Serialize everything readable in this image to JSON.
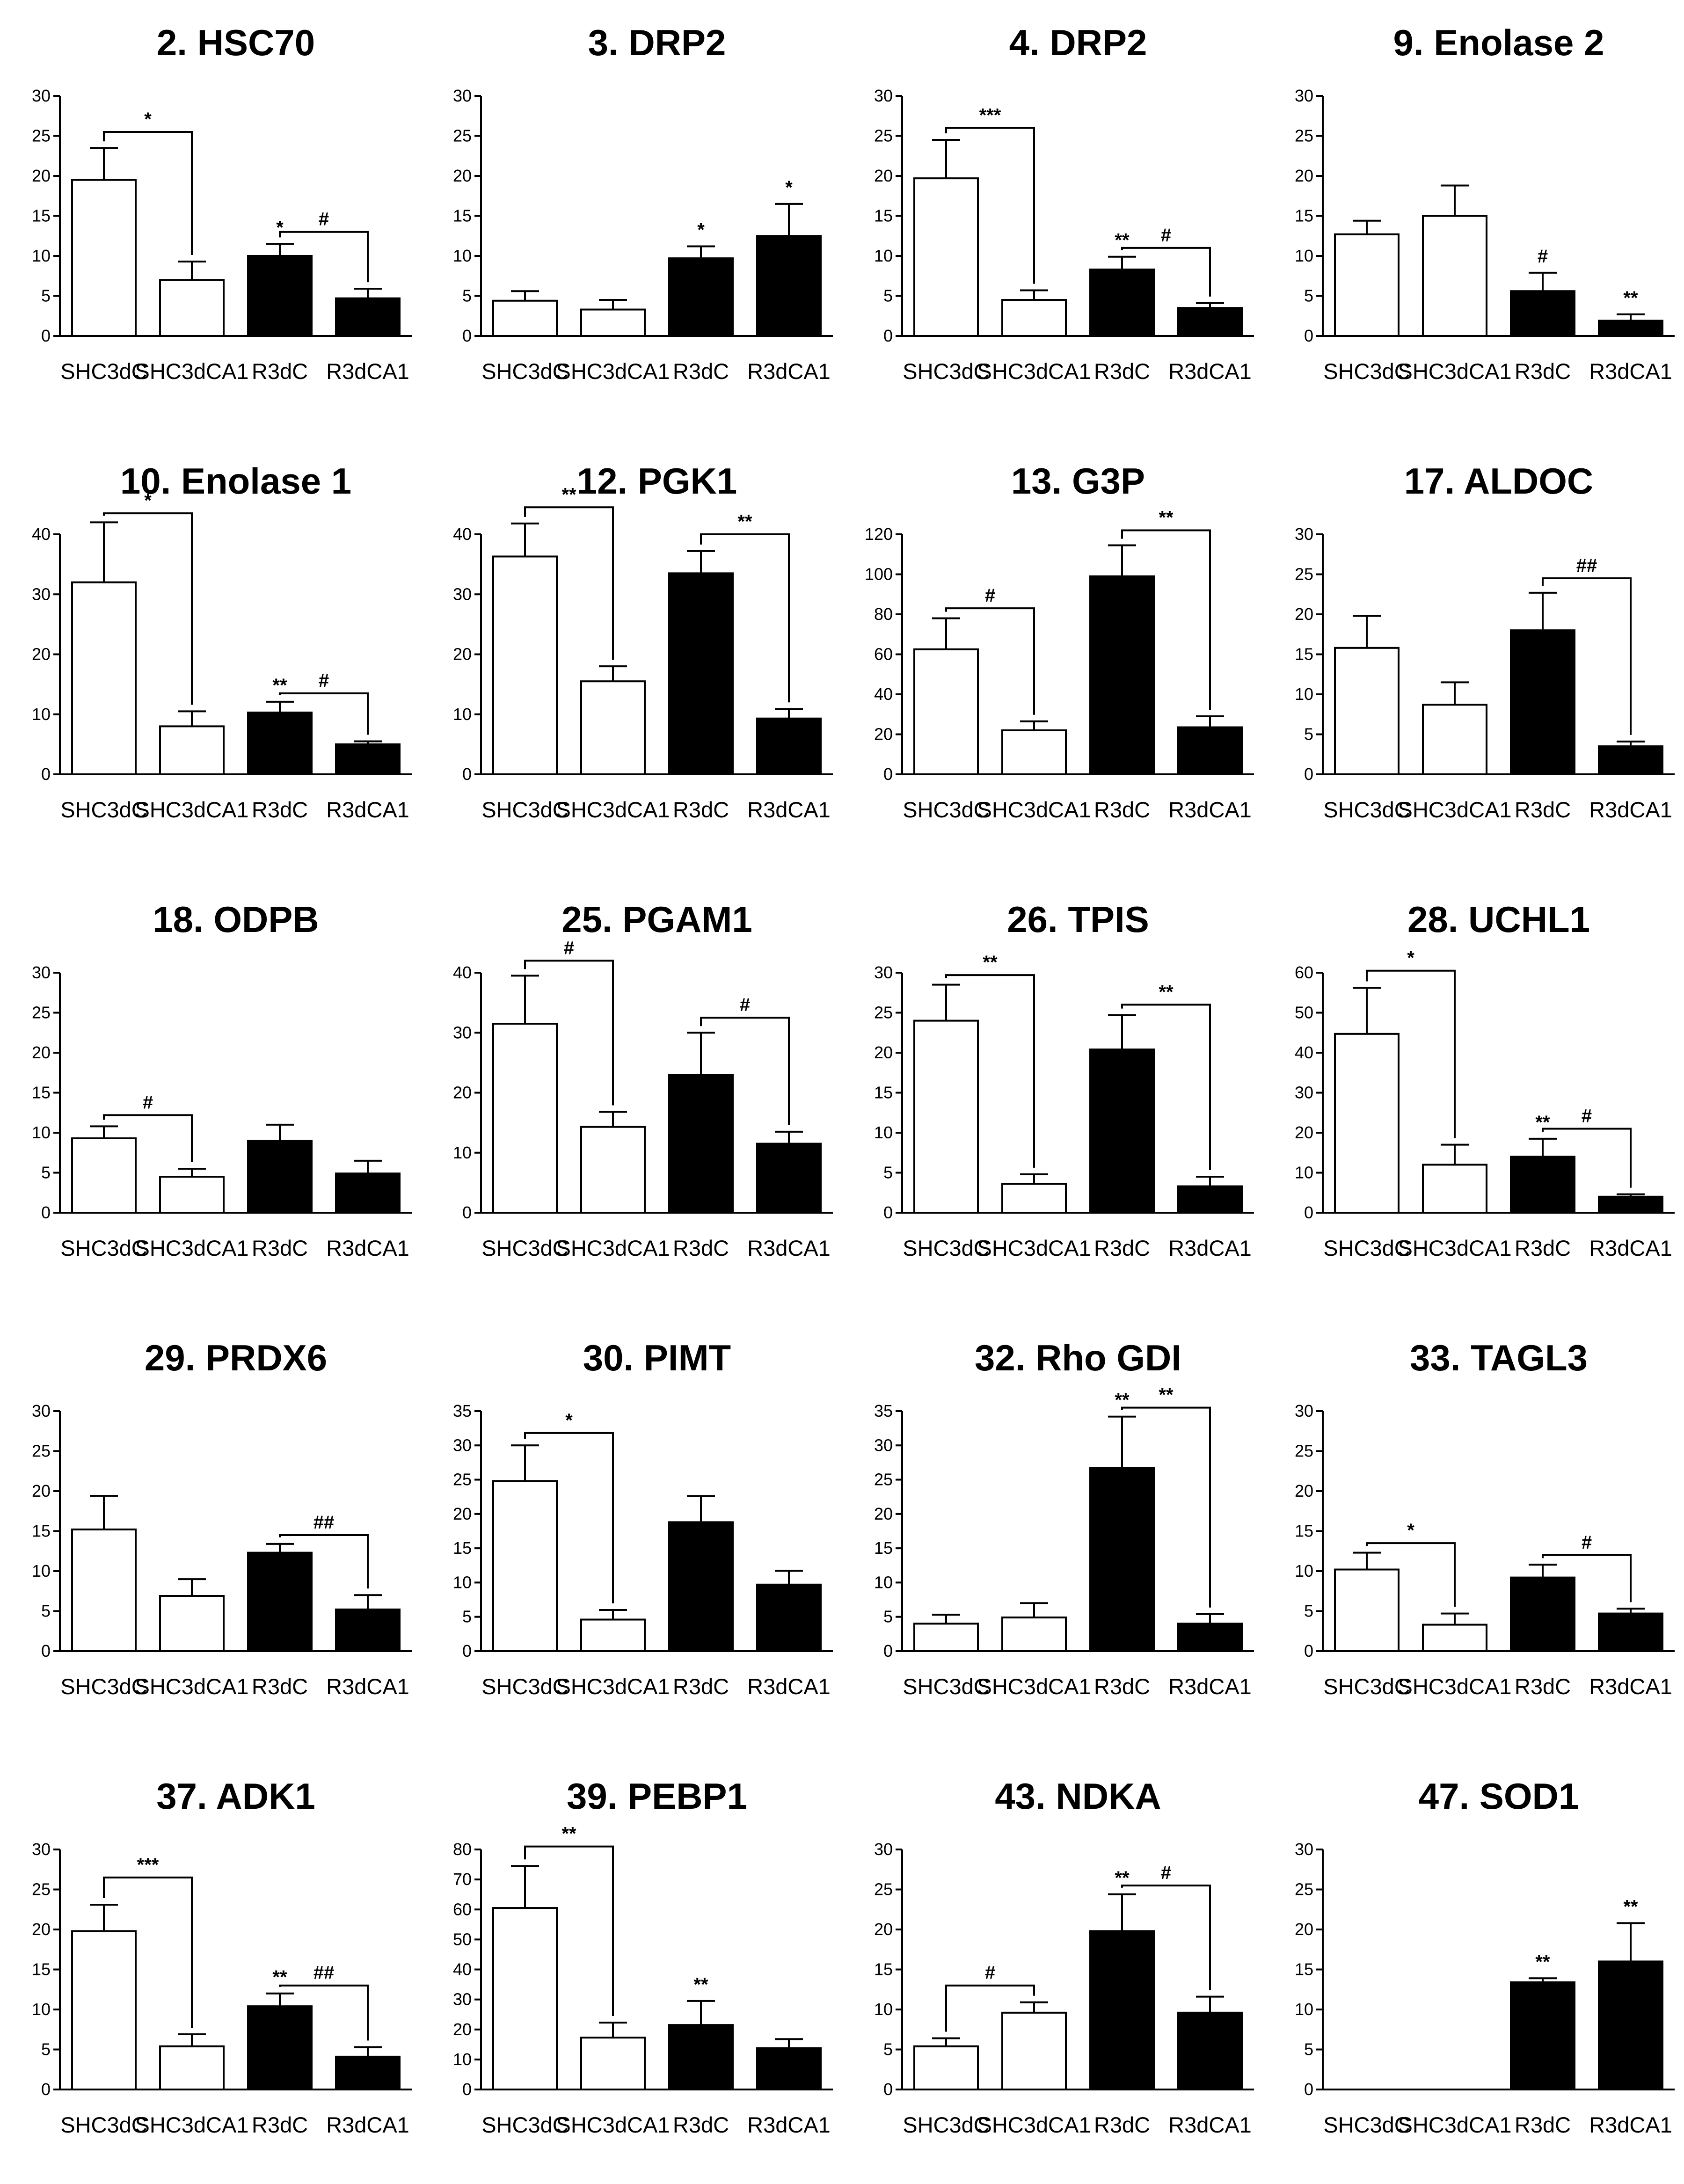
{
  "chart_data": [
    {
      "type": "bar",
      "title": "2. HSC70",
      "categories": [
        "SHC3dC",
        "SHC3dCA1",
        "R3dC",
        "R3dCA1"
      ],
      "values": [
        19.5,
        7,
        10,
        4.7
      ],
      "errors": [
        4,
        2.3,
        1.5,
        1.2
      ],
      "ylim": [
        0,
        30
      ],
      "yticks": [
        0,
        5,
        10,
        15,
        20,
        25,
        30
      ],
      "brackets": [
        {
          "from": 0,
          "to": 1,
          "y": 25.5,
          "label": "*"
        },
        {
          "from": 2,
          "to": 3,
          "y": 13,
          "label": "#"
        }
      ],
      "labels": [
        {
          "bar": 2,
          "text": "*"
        }
      ]
    },
    {
      "type": "bar",
      "title": "3. DRP2",
      "categories": [
        "SHC3dC",
        "SHC3dCA1",
        "R3dC",
        "R3dCA1"
      ],
      "values": [
        4.4,
        3.3,
        9.7,
        12.5
      ],
      "errors": [
        1.2,
        1.2,
        1.5,
        4
      ],
      "ylim": [
        0,
        30
      ],
      "yticks": [
        0,
        5,
        10,
        15,
        20,
        25,
        30
      ],
      "brackets": [],
      "labels": [
        {
          "bar": 2,
          "text": "*"
        },
        {
          "bar": 3,
          "text": "*"
        }
      ]
    },
    {
      "type": "bar",
      "title": "4. DRP2",
      "categories": [
        "SHC3dC",
        "SHC3dCA1",
        "R3dC",
        "R3dCA1"
      ],
      "values": [
        19.7,
        4.5,
        8.3,
        3.5
      ],
      "errors": [
        4.8,
        1.2,
        1.6,
        0.6
      ],
      "ylim": [
        0,
        30
      ],
      "yticks": [
        0,
        5,
        10,
        15,
        20,
        25,
        30
      ],
      "brackets": [
        {
          "from": 0,
          "to": 1,
          "y": 26,
          "label": "***"
        },
        {
          "from": 2,
          "to": 3,
          "y": 11,
          "label": "#"
        }
      ],
      "labels": [
        {
          "bar": 2,
          "text": "**"
        }
      ]
    },
    {
      "type": "bar",
      "title": "9. Enolase 2",
      "categories": [
        "SHC3dC",
        "SHC3dCA1",
        "R3dC",
        "R3dCA1"
      ],
      "values": [
        12.7,
        15,
        5.6,
        1.9
      ],
      "errors": [
        1.7,
        3.8,
        2.3,
        0.8
      ],
      "ylim": [
        0,
        30
      ],
      "yticks": [
        0,
        5,
        10,
        15,
        20,
        25,
        30
      ],
      "brackets": [],
      "labels": [
        {
          "bar": 2,
          "text": "#"
        },
        {
          "bar": 3,
          "text": "**"
        }
      ]
    },
    {
      "type": "bar",
      "title": "10. Enolase 1",
      "categories": [
        "SHC3dC",
        "SHC3dCA1",
        "R3dC",
        "R3dCA1"
      ],
      "values": [
        32,
        8,
        10.3,
        5
      ],
      "errors": [
        10,
        2.5,
        1.8,
        0.5
      ],
      "ylim": [
        0,
        40
      ],
      "yticks": [
        0,
        10,
        20,
        30,
        40
      ],
      "brackets": [
        {
          "from": 0,
          "to": 1,
          "y": 43.5,
          "label": "*"
        },
        {
          "from": 2,
          "to": 3,
          "y": 13.5,
          "label": "#"
        }
      ],
      "labels": [
        {
          "bar": 2,
          "text": "**"
        }
      ]
    },
    {
      "type": "bar",
      "title": "12. PGK1",
      "categories": [
        "SHC3dC",
        "SHC3dCA1",
        "R3dC",
        "R3dCA1"
      ],
      "values": [
        36.3,
        15.5,
        33.5,
        9.3
      ],
      "errors": [
        5.5,
        2.5,
        3.7,
        1.6
      ],
      "ylim": [
        0,
        40
      ],
      "yticks": [
        0,
        10,
        20,
        30,
        40
      ],
      "brackets": [
        {
          "from": 0,
          "to": 1,
          "y": 44.5,
          "label": "**"
        },
        {
          "from": 2,
          "to": 3,
          "y": 40,
          "label": "**"
        }
      ],
      "labels": []
    },
    {
      "type": "bar",
      "title": "13. G3P",
      "categories": [
        "SHC3dC",
        "SHC3dCA1",
        "R3dC",
        "R3dCA1"
      ],
      "values": [
        62.5,
        22,
        99,
        23.5
      ],
      "errors": [
        15.5,
        4.5,
        15.5,
        5.5
      ],
      "ylim": [
        0,
        120
      ],
      "yticks": [
        0,
        20,
        40,
        60,
        80,
        100,
        120
      ],
      "brackets": [
        {
          "from": 0,
          "to": 1,
          "y": 83,
          "label": "#"
        },
        {
          "from": 2,
          "to": 3,
          "y": 122,
          "label": "**"
        }
      ],
      "labels": []
    },
    {
      "type": "bar",
      "title": "17. ALDOC",
      "categories": [
        "SHC3dC",
        "SHC3dCA1",
        "R3dC",
        "R3dCA1"
      ],
      "values": [
        15.8,
        8.7,
        18,
        3.5
      ],
      "errors": [
        4,
        2.8,
        4.7,
        0.6
      ],
      "ylim": [
        0,
        30
      ],
      "yticks": [
        0,
        5,
        10,
        15,
        20,
        25,
        30
      ],
      "brackets": [
        {
          "from": 2,
          "to": 3,
          "y": 24.5,
          "label": "##"
        }
      ],
      "labels": []
    },
    {
      "type": "bar",
      "title": "18. ODPB",
      "categories": [
        "SHC3dC",
        "SHC3dCA1",
        "R3dC",
        "R3dCA1"
      ],
      "values": [
        9.3,
        4.5,
        9,
        4.9
      ],
      "errors": [
        1.5,
        1,
        2,
        1.6
      ],
      "ylim": [
        0,
        30
      ],
      "yticks": [
        0,
        5,
        10,
        15,
        20,
        25,
        30
      ],
      "brackets": [
        {
          "from": 0,
          "to": 1,
          "y": 12.2,
          "label": "#"
        }
      ],
      "labels": []
    },
    {
      "type": "bar",
      "title": "25. PGAM1",
      "categories": [
        "SHC3dC",
        "SHC3dCA1",
        "R3dC",
        "R3dCA1"
      ],
      "values": [
        31.5,
        14.3,
        23,
        11.5
      ],
      "errors": [
        8,
        2.5,
        7,
        2
      ],
      "ylim": [
        0,
        40
      ],
      "yticks": [
        0,
        10,
        20,
        30,
        40
      ],
      "brackets": [
        {
          "from": 0,
          "to": 1,
          "y": 42,
          "label": "#"
        },
        {
          "from": 2,
          "to": 3,
          "y": 32.5,
          "label": "#"
        }
      ],
      "labels": []
    },
    {
      "type": "bar",
      "title": "26. TPIS",
      "categories": [
        "SHC3dC",
        "SHC3dCA1",
        "R3dC",
        "R3dCA1"
      ],
      "values": [
        24,
        3.6,
        20.4,
        3.3
      ],
      "errors": [
        4.5,
        1.2,
        4.3,
        1.2
      ],
      "ylim": [
        0,
        30
      ],
      "yticks": [
        0,
        5,
        10,
        15,
        20,
        25,
        30
      ],
      "brackets": [
        {
          "from": 0,
          "to": 1,
          "y": 29.7,
          "label": "**"
        },
        {
          "from": 2,
          "to": 3,
          "y": 26,
          "label": "**"
        }
      ],
      "labels": []
    },
    {
      "type": "bar",
      "title": "28. UCHL1",
      "categories": [
        "SHC3dC",
        "SHC3dCA1",
        "R3dC",
        "R3dCA1"
      ],
      "values": [
        44.7,
        12,
        14,
        4
      ],
      "errors": [
        11.5,
        5,
        4.5,
        0.6
      ],
      "ylim": [
        0,
        60
      ],
      "yticks": [
        0,
        10,
        20,
        30,
        40,
        50,
        60
      ],
      "brackets": [
        {
          "from": 0,
          "to": 1,
          "y": 60.5,
          "label": "*"
        },
        {
          "from": 2,
          "to": 3,
          "y": 21,
          "label": "#"
        }
      ],
      "labels": [
        {
          "bar": 2,
          "text": "**"
        }
      ]
    },
    {
      "type": "bar",
      "title": "29. PRDX6",
      "categories": [
        "SHC3dC",
        "SHC3dCA1",
        "R3dC",
        "R3dCA1"
      ],
      "values": [
        15.2,
        6.9,
        12.3,
        5.2
      ],
      "errors": [
        4.2,
        2.1,
        1.1,
        1.8
      ],
      "ylim": [
        0,
        30
      ],
      "yticks": [
        0,
        5,
        10,
        15,
        20,
        25,
        30
      ],
      "brackets": [
        {
          "from": 2,
          "to": 3,
          "y": 14.5,
          "label": "##"
        }
      ],
      "labels": []
    },
    {
      "type": "bar",
      "title": "30. PIMT",
      "categories": [
        "SHC3dC",
        "SHC3dCA1",
        "R3dC",
        "R3dCA1"
      ],
      "values": [
        24.8,
        4.6,
        18.8,
        9.7
      ],
      "errors": [
        5.2,
        1.4,
        3.8,
        2
      ],
      "ylim": [
        0,
        35
      ],
      "yticks": [
        0,
        5,
        10,
        15,
        20,
        25,
        30,
        35
      ],
      "brackets": [
        {
          "from": 0,
          "to": 1,
          "y": 31.8,
          "label": "*"
        }
      ],
      "labels": []
    },
    {
      "type": "bar",
      "title": "32. Rho GDI",
      "categories": [
        "SHC3dC",
        "SHC3dCA1",
        "R3dC",
        "R3dCA1"
      ],
      "values": [
        4,
        4.9,
        26.7,
        4
      ],
      "errors": [
        1.3,
        2.1,
        7.5,
        1.4
      ],
      "ylim": [
        0,
        35
      ],
      "yticks": [
        0,
        5,
        10,
        15,
        20,
        25,
        30,
        35
      ],
      "brackets": [
        {
          "from": 2,
          "to": 3,
          "y": 35.5,
          "label": "**"
        }
      ],
      "labels": [
        {
          "bar": 2,
          "text": "**"
        }
      ]
    },
    {
      "type": "bar",
      "title": "33. TAGL3",
      "categories": [
        "SHC3dC",
        "SHC3dCA1",
        "R3dC",
        "R3dCA1"
      ],
      "values": [
        10.2,
        3.3,
        9.2,
        4.7
      ],
      "errors": [
        2.1,
        1.4,
        1.6,
        0.6
      ],
      "ylim": [
        0,
        30
      ],
      "yticks": [
        0,
        5,
        10,
        15,
        20,
        25,
        30
      ],
      "brackets": [
        {
          "from": 0,
          "to": 1,
          "y": 13.5,
          "label": "*"
        },
        {
          "from": 2,
          "to": 3,
          "y": 12,
          "label": "#"
        }
      ],
      "labels": []
    },
    {
      "type": "bar",
      "title": "37. ADK1",
      "categories": [
        "SHC3dC",
        "SHC3dCA1",
        "R3dC",
        "R3dCA1"
      ],
      "values": [
        19.8,
        5.4,
        10.4,
        4.1
      ],
      "errors": [
        3.3,
        1.5,
        1.6,
        1.2
      ],
      "ylim": [
        0,
        30
      ],
      "yticks": [
        0,
        5,
        10,
        15,
        20,
        25,
        30
      ],
      "brackets": [
        {
          "from": 0,
          "to": 1,
          "y": 26.5,
          "label": "***"
        },
        {
          "from": 2,
          "to": 3,
          "y": 13,
          "label": "##"
        }
      ],
      "labels": [
        {
          "bar": 2,
          "text": "**"
        }
      ]
    },
    {
      "type": "bar",
      "title": "39. PEBP1",
      "categories": [
        "SHC3dC",
        "SHC3dCA1",
        "R3dC",
        "R3dCA1"
      ],
      "values": [
        60.5,
        17.3,
        21.5,
        13.8
      ],
      "errors": [
        14,
        5,
        8,
        3
      ],
      "ylim": [
        0,
        80
      ],
      "yticks": [
        0,
        10,
        20,
        30,
        40,
        50,
        60,
        70,
        80
      ],
      "brackets": [
        {
          "from": 0,
          "to": 1,
          "y": 81,
          "label": "**"
        }
      ],
      "labels": [
        {
          "bar": 2,
          "text": "**"
        }
      ]
    },
    {
      "type": "bar",
      "title": "43. NDKA",
      "categories": [
        "SHC3dC",
        "SHC3dCA1",
        "R3dC",
        "R3dCA1"
      ],
      "values": [
        5.4,
        9.6,
        19.8,
        9.6
      ],
      "errors": [
        1,
        1.3,
        4.6,
        2
      ],
      "ylim": [
        0,
        30
      ],
      "yticks": [
        0,
        5,
        10,
        15,
        20,
        25,
        30
      ],
      "brackets": [
        {
          "from": 0,
          "to": 1,
          "y": 13,
          "label": "#"
        },
        {
          "from": 2,
          "to": 3,
          "y": 25.5,
          "label": "#"
        }
      ],
      "labels": [
        {
          "bar": 2,
          "text": "**"
        }
      ]
    },
    {
      "type": "bar",
      "title": "47. SOD1",
      "categories": [
        "SHC3dC",
        "SHC3dCA1",
        "R3dC",
        "R3dCA1"
      ],
      "values": [
        0,
        0,
        13.4,
        16
      ],
      "errors": [
        0,
        0,
        0.5,
        4.8
      ],
      "ylim": [
        0,
        30
      ],
      "yticks": [
        0,
        5,
        10,
        15,
        20,
        25,
        30
      ],
      "brackets": [],
      "labels": [
        {
          "bar": 2,
          "text": "**"
        },
        {
          "bar": 3,
          "text": "**"
        }
      ]
    }
  ]
}
